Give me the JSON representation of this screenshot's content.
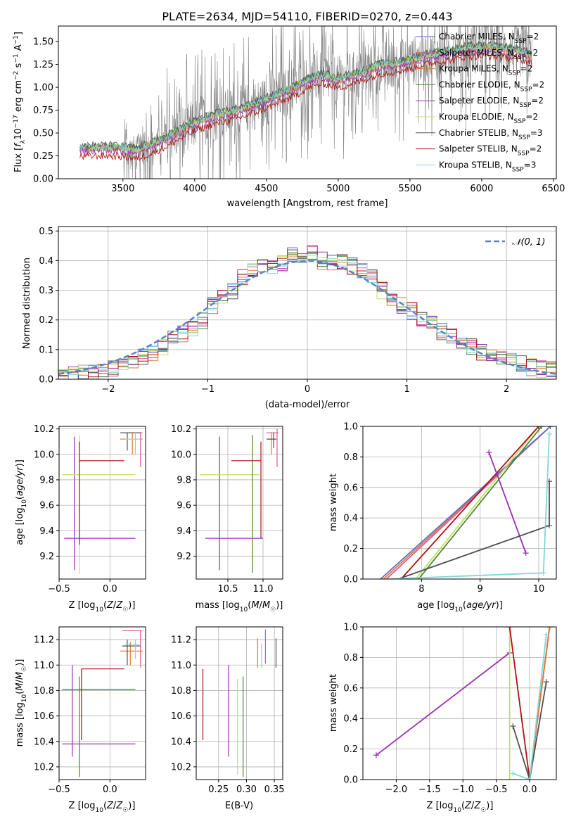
{
  "figure": {
    "title": "PLATE=2634, MJD=54110, FIBERID=0270, z=0.443"
  },
  "colors": {
    "Chabrier MILES": "#5a6fd0",
    "Salpeter MILES": "#e05a9a",
    "Kroupa MILES": "#e07a30",
    "Chabrier ELODIE": "#4a8a3a",
    "Salpeter ELODIE": "#9a30b0",
    "Kroupa ELODIE": "#c0e060",
    "Chabrier STELIB": "#505050",
    "Salpeter STELIB": "#b01010",
    "Kroupa STELIB": "#80d8d8",
    "data": "#808080",
    "normal": "#5a80d0"
  },
  "chart_data": [
    {
      "type": "line",
      "xlabel": "wavelength [Angstrom, rest frame]",
      "ylabel": "Flux [fλ10⁻¹⁷ erg cm⁻² s⁻¹ A⁻¹]",
      "xlim": [
        3050,
        6520
      ],
      "ylim": [
        0,
        1.67
      ],
      "xticks": [
        3500,
        4000,
        4500,
        5000,
        5500,
        6000,
        6500
      ],
      "yticks": [
        0.0,
        0.25,
        0.5,
        0.75,
        1.0,
        1.25,
        1.5
      ],
      "legend_position": "upper-right",
      "series": [
        {
          "name": "Chabrier MILES, N_SSP=2"
        },
        {
          "name": "Salpeter MILES, N_SSP=2"
        },
        {
          "name": "Kroupa MILES, N_SSP=2"
        },
        {
          "name": "Chabrier ELODIE, N_SSP=2"
        },
        {
          "name": "Salpeter ELODIE, N_SSP=2"
        },
        {
          "name": "Kroupa ELODIE, N_SSP=2"
        },
        {
          "name": "Chabrier STELIB, N_SSP=3"
        },
        {
          "name": "Salpeter STELIB, N_SSP=2"
        },
        {
          "name": "Kroupa STELIB, N_SSP=3"
        }
      ],
      "model_continuum": {
        "x": [
          3200,
          3300,
          3400,
          3500,
          3600,
          3700,
          3800,
          3900,
          4000,
          4100,
          4200,
          4300,
          4400,
          4500,
          4600,
          4700,
          4800,
          4900,
          5000,
          5100,
          5200,
          5300,
          5400,
          5500,
          5600,
          5700,
          5800,
          5900,
          6000,
          6100,
          6200,
          6300,
          6350
        ],
        "y": [
          0.32,
          0.33,
          0.33,
          0.32,
          0.3,
          0.36,
          0.43,
          0.52,
          0.6,
          0.66,
          0.7,
          0.74,
          0.79,
          0.85,
          0.92,
          0.99,
          1.08,
          1.12,
          1.07,
          1.12,
          1.17,
          1.23,
          1.25,
          1.28,
          1.33,
          1.36,
          1.38,
          1.42,
          1.42,
          1.42,
          1.4,
          1.37,
          1.33
        ]
      }
    },
    {
      "type": "bar",
      "xlabel": "(data-model)/error",
      "ylabel": "Normed distribution",
      "xlim": [
        -2.5,
        2.5
      ],
      "ylim": [
        0,
        0.515
      ],
      "xticks": [
        -2,
        -1,
        0,
        1,
        2
      ],
      "yticks": [
        0.0,
        0.1,
        0.2,
        0.3,
        0.4,
        0.5
      ],
      "grid": true,
      "legend": [
        "𝒩(0, 1)"
      ],
      "legend_position": "upper-right",
      "bin_edges": [
        -2.5,
        -2.4,
        -2.3,
        -2.2,
        -2.1,
        -2.0,
        -1.9,
        -1.8,
        -1.7,
        -1.6,
        -1.5,
        -1.4,
        -1.3,
        -1.2,
        -1.1,
        -1.0,
        -0.9,
        -0.8,
        -0.7,
        -0.6,
        -0.5,
        -0.4,
        -0.3,
        -0.2,
        -0.1,
        0.0,
        0.1,
        0.2,
        0.3,
        0.4,
        0.5,
        0.6,
        0.7,
        0.8,
        0.9,
        1.0,
        1.1,
        1.2,
        1.3,
        1.4,
        1.5,
        1.6,
        1.7,
        1.8,
        1.9,
        2.0,
        2.1,
        2.2,
        2.3,
        2.4,
        2.5
      ],
      "histogram_profile": [
        0.01,
        0.015,
        0.02,
        0.028,
        0.035,
        0.04,
        0.05,
        0.06,
        0.075,
        0.085,
        0.11,
        0.135,
        0.15,
        0.175,
        0.2,
        0.25,
        0.27,
        0.3,
        0.34,
        0.37,
        0.38,
        0.38,
        0.39,
        0.42,
        0.41,
        0.43,
        0.4,
        0.39,
        0.4,
        0.38,
        0.36,
        0.34,
        0.3,
        0.27,
        0.25,
        0.23,
        0.21,
        0.19,
        0.16,
        0.14,
        0.12,
        0.11,
        0.09,
        0.08,
        0.07,
        0.06,
        0.05,
        0.04,
        0.035,
        0.03
      ]
    },
    {
      "type": "scatter",
      "xlabel": "Z [log₁₀(Z/Z☉)]",
      "ylabel": "age  [log₁₀(age/yr)]",
      "xlim": [
        -0.5,
        0.35
      ],
      "ylim": [
        9.02,
        10.22
      ],
      "xticks": [
        -0.5,
        0.0
      ],
      "yticks": [
        9.2,
        9.4,
        9.6,
        9.8,
        10.0,
        10.2
      ],
      "grid": true
    },
    {
      "type": "scatter",
      "xlabel": "mass [log₁₀(M/M☉)]",
      "ylabel": "",
      "xlim": [
        10.05,
        11.28
      ],
      "ylim": [
        9.02,
        10.22
      ],
      "xticks": [
        10.5,
        11.0
      ],
      "yticks": [
        9.2,
        9.4,
        9.6,
        9.8,
        10.0,
        10.2
      ],
      "grid": true
    },
    {
      "type": "line",
      "xlabel": "age  [log₁₀(age/yr)]",
      "ylabel": "mass weight",
      "xlim": [
        7.0,
        10.3
      ],
      "ylim": [
        0,
        1.0
      ],
      "xticks": [
        8,
        9,
        10
      ],
      "yticks": [
        0.0,
        0.2,
        0.4,
        0.6,
        0.8,
        1.0
      ],
      "grid": true
    },
    {
      "type": "scatter",
      "xlabel": "Z [log₁₀(Z/Z☉)]",
      "ylabel": "mass [log₁₀(M/M☉)]",
      "xlim": [
        -0.5,
        0.35
      ],
      "ylim": [
        10.1,
        11.3
      ],
      "xticks": [
        -0.5,
        0.0
      ],
      "yticks": [
        10.2,
        10.4,
        10.6,
        10.8,
        11.0,
        11.2
      ],
      "grid": true
    },
    {
      "type": "scatter",
      "xlabel": "E(B-V)",
      "ylabel": "",
      "xlim": [
        0.21,
        0.365
      ],
      "ylim": [
        10.1,
        11.3
      ],
      "xticks": [
        0.25,
        0.3,
        0.35
      ],
      "yticks": [
        10.2,
        10.4,
        10.6,
        10.8,
        11.0,
        11.2
      ],
      "grid": true
    },
    {
      "type": "line",
      "xlabel": "Z [log₁₀(Z/Z☉)]",
      "ylabel": "mass weight",
      "xlim": [
        -2.5,
        0.4
      ],
      "ylim": [
        0,
        1.0
      ],
      "xticks": [
        -2.0,
        -1.5,
        -1.0,
        -0.5,
        0.0
      ],
      "yticks": [
        0.0,
        0.2,
        0.4,
        0.6,
        0.8,
        1.0
      ],
      "grid": true
    }
  ]
}
